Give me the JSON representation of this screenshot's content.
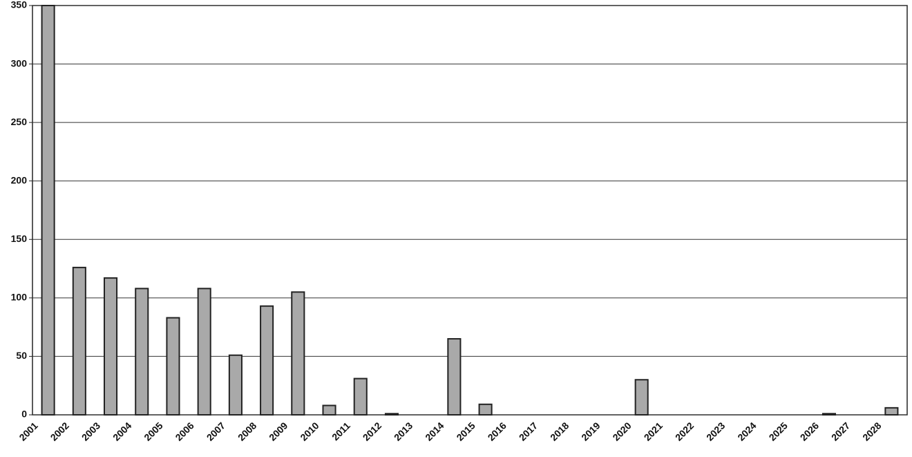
{
  "chart_data": {
    "type": "bar",
    "categories": [
      "2001",
      "2002",
      "2003",
      "2004",
      "2005",
      "2006",
      "2007",
      "2008",
      "2009",
      "2010",
      "2011",
      "2012",
      "2013",
      "2014",
      "2015",
      "2016",
      "2017",
      "2018",
      "2019",
      "2020",
      "2021",
      "2022",
      "2023",
      "2024",
      "2025",
      "2026",
      "2027",
      "2028"
    ],
    "values": [
      350,
      126,
      117,
      108,
      83,
      108,
      51,
      93,
      105,
      8,
      31,
      1,
      0,
      65,
      9,
      0,
      0,
      0,
      0,
      30,
      0,
      0,
      0,
      0,
      0,
      1,
      0,
      6
    ],
    "color": "#a9a9a9",
    "ylim": [
      0,
      350
    ],
    "yticks": [
      0,
      50,
      100,
      150,
      200,
      250,
      300,
      350
    ],
    "grid": true
  }
}
